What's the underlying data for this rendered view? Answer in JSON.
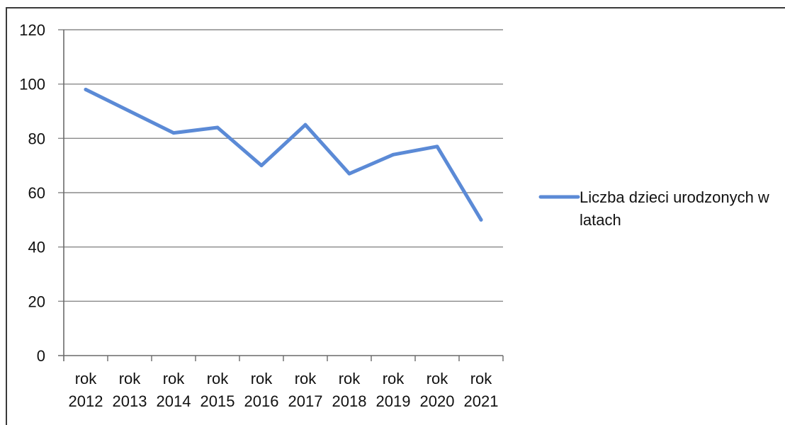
{
  "chart_data": {
    "type": "line",
    "categories": [
      "rok 2012",
      "rok 2013",
      "rok 2014",
      "rok 2015",
      "rok 2016",
      "rok 2017",
      "rok 2018",
      "rok 2019",
      "rok 2020",
      "rok 2021"
    ],
    "category_lines": [
      [
        "rok",
        "2012"
      ],
      [
        "rok",
        "2013"
      ],
      [
        "rok",
        "2014"
      ],
      [
        "rok",
        "2015"
      ],
      [
        "rok",
        "2016"
      ],
      [
        "rok",
        "2017"
      ],
      [
        "rok",
        "2018"
      ],
      [
        "rok",
        "2019"
      ],
      [
        "rok",
        "2020"
      ],
      [
        "rok",
        "2021"
      ]
    ],
    "series": [
      {
        "name": "Liczba dzieci urodzonych w latach",
        "values": [
          98,
          90,
          82,
          84,
          70,
          85,
          67,
          74,
          77,
          50
        ],
        "color": "#5b8ad6"
      }
    ],
    "ylim": [
      0,
      120
    ],
    "yticks": [
      0,
      20,
      40,
      60,
      80,
      100,
      120
    ],
    "grid": true,
    "legend_position": "right",
    "legend_lines": [
      "Liczba dzieci urodzonych w",
      "latach"
    ],
    "title": "",
    "xlabel": "",
    "ylabel": ""
  }
}
